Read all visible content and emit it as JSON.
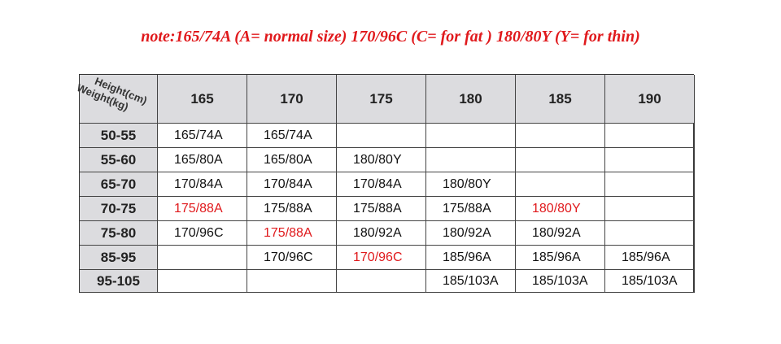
{
  "note": "note:165/74A (A= normal size) 170/96C (C= for fat ) 180/80Y (Y= for thin)",
  "table": {
    "corner": {
      "height": "Height(cm)",
      "weight": "Weight(kg)"
    },
    "columns": [
      "165",
      "170",
      "175",
      "180",
      "185",
      "190"
    ],
    "rows": [
      {
        "label": "50-55",
        "cells": [
          "165/74A",
          "165/74A",
          null,
          null,
          null,
          null
        ]
      },
      {
        "label": "55-60",
        "cells": [
          "165/80A",
          "165/80A",
          "180/80Y",
          null,
          null,
          null
        ]
      },
      {
        "label": "65-70",
        "cells": [
          "170/84A",
          "170/84A",
          "170/84A",
          "180/80Y",
          null,
          null
        ]
      },
      {
        "label": "70-75",
        "cells": [
          {
            "text": "175/88A",
            "color": "#e0191c"
          },
          "175/88A",
          "175/88A",
          "175/88A",
          {
            "text": "180/80Y",
            "color": "#e0191c"
          },
          null
        ]
      },
      {
        "label": "75-80",
        "cells": [
          "170/96C",
          {
            "text": "175/88A",
            "color": "#e0191c"
          },
          "180/92A",
          "180/92A",
          "180/92A",
          null
        ]
      },
      {
        "label": "85-95",
        "cells": [
          null,
          "170/96C",
          {
            "text": "170/96C",
            "color": "#e0191c"
          },
          "185/96A",
          "185/96A",
          "185/96A"
        ]
      },
      {
        "label": "95-105",
        "cells": [
          null,
          null,
          null,
          "185/103A",
          "185/103A",
          "185/103A"
        ]
      }
    ]
  }
}
